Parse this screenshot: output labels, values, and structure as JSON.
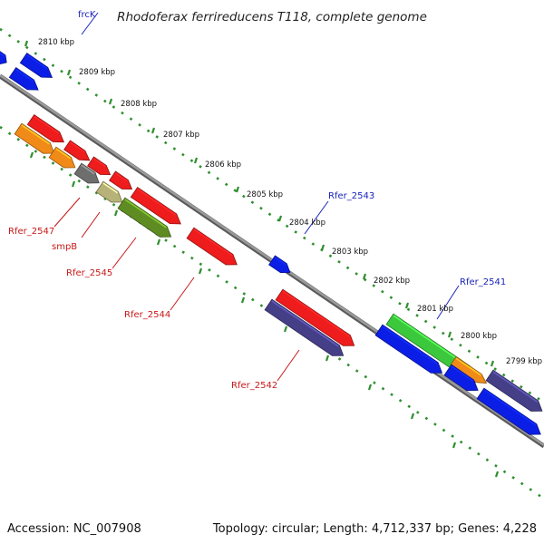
{
  "title": "Rhodoferax ferrireducens T118, complete genome",
  "footer": {
    "accession": "Accession: NC_007908",
    "summary": "Topology: circular; Length: 4,712,337 bp; Genes: 4,228"
  },
  "ticks": [
    "2810 kbp",
    "2809 kbp",
    "2808 kbp",
    "2807 kbp",
    "2806 kbp",
    "2805 kbp",
    "2804 kbp",
    "2803 kbp",
    "2802 kbp",
    "2801 kbp",
    "2800 kbp",
    "2799 kbp"
  ],
  "gene_labels": {
    "frcK": "frcK",
    "rfer_2543": "Rfer_2543",
    "rfer_2541": "Rfer_2541",
    "rfer_2547": "Rfer_2547",
    "smpB": "smpB",
    "rfer_2545": "Rfer_2545",
    "rfer_2544": "Rfer_2544",
    "rfer_2542": "Rfer_2542"
  },
  "colors": {
    "backbone": "#8c8c8c",
    "dots": "#2f8f2f",
    "red": "#ee1c1c",
    "blue": "#0b1ee6",
    "orange": "#f08a18",
    "gray": "#6e6e6e",
    "khaki": "#b7b277",
    "olive": "#5e8c22",
    "purple": "#453f88",
    "green": "#3cc83c"
  }
}
